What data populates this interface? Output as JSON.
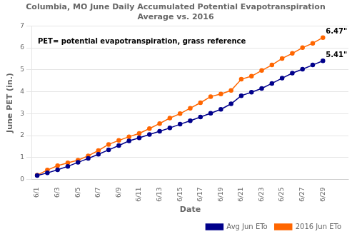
{
  "chart_data": {
    "type": "line",
    "title": "Columbia, MO June Daily Accumulated Potential Evapotranspiration\nAverage vs. 2016",
    "xlabel": "Date",
    "ylabel": "June PET (in.)",
    "annotation": "PET= potential evapotranspiration, grass reference",
    "x": [
      1,
      2,
      3,
      4,
      5,
      6,
      7,
      8,
      9,
      10,
      11,
      12,
      13,
      14,
      15,
      16,
      17,
      18,
      19,
      20,
      21,
      22,
      23,
      24,
      25,
      26,
      27,
      28,
      29
    ],
    "xlim": [
      0.5,
      31.5
    ],
    "xticks": [
      {
        "value": 1,
        "label": "6/1"
      },
      {
        "value": 3,
        "label": "6/3"
      },
      {
        "value": 5,
        "label": "6/5"
      },
      {
        "value": 7,
        "label": "6/7"
      },
      {
        "value": 9,
        "label": "6/9"
      },
      {
        "value": 11,
        "label": "6/11"
      },
      {
        "value": 13,
        "label": "6/13"
      },
      {
        "value": 15,
        "label": "6/15"
      },
      {
        "value": 17,
        "label": "6/17"
      },
      {
        "value": 19,
        "label": "6/19"
      },
      {
        "value": 21,
        "label": "6/21"
      },
      {
        "value": 23,
        "label": "6/23"
      },
      {
        "value": 25,
        "label": "6/25"
      },
      {
        "value": 27,
        "label": "6/27"
      },
      {
        "value": 29,
        "label": "6/29"
      }
    ],
    "ylim": [
      0,
      7
    ],
    "yticks": [
      0,
      1,
      2,
      3,
      4,
      5,
      6,
      7
    ],
    "grid": "y",
    "legend": "lower right",
    "series": [
      {
        "name": "Avg Jun ETo",
        "color": "#00008B",
        "marker": "circle",
        "values": [
          0.18,
          0.3,
          0.44,
          0.6,
          0.78,
          0.96,
          1.15,
          1.35,
          1.55,
          1.76,
          1.9,
          2.05,
          2.2,
          2.35,
          2.52,
          2.68,
          2.85,
          3.02,
          3.2,
          3.45,
          3.82,
          3.98,
          4.15,
          4.38,
          4.62,
          4.85,
          5.03,
          5.22,
          5.41
        ],
        "value_labels": [
          null,
          null,
          null,
          null,
          null,
          null,
          null,
          null,
          null,
          null,
          null,
          null,
          null,
          null,
          null,
          null,
          null,
          null,
          null,
          null,
          null,
          null,
          null,
          null,
          null,
          null,
          null,
          null,
          "5.41\""
        ]
      },
      {
        "name": "2016 Jun ETo",
        "color": "#FF6600",
        "marker": "circle",
        "values": [
          0.2,
          0.43,
          0.63,
          0.76,
          0.88,
          1.08,
          1.32,
          1.6,
          1.78,
          1.95,
          2.1,
          2.32,
          2.55,
          2.8,
          3.0,
          3.25,
          3.5,
          3.78,
          3.9,
          4.06,
          4.57,
          4.71,
          4.97,
          5.22,
          5.52,
          5.75,
          6.01,
          6.21,
          6.47
        ],
        "value_labels": [
          null,
          null,
          null,
          null,
          null,
          null,
          null,
          null,
          null,
          null,
          null,
          null,
          null,
          null,
          null,
          null,
          null,
          null,
          null,
          null,
          null,
          null,
          null,
          null,
          null,
          null,
          null,
          null,
          "6.47\""
        ]
      }
    ]
  }
}
